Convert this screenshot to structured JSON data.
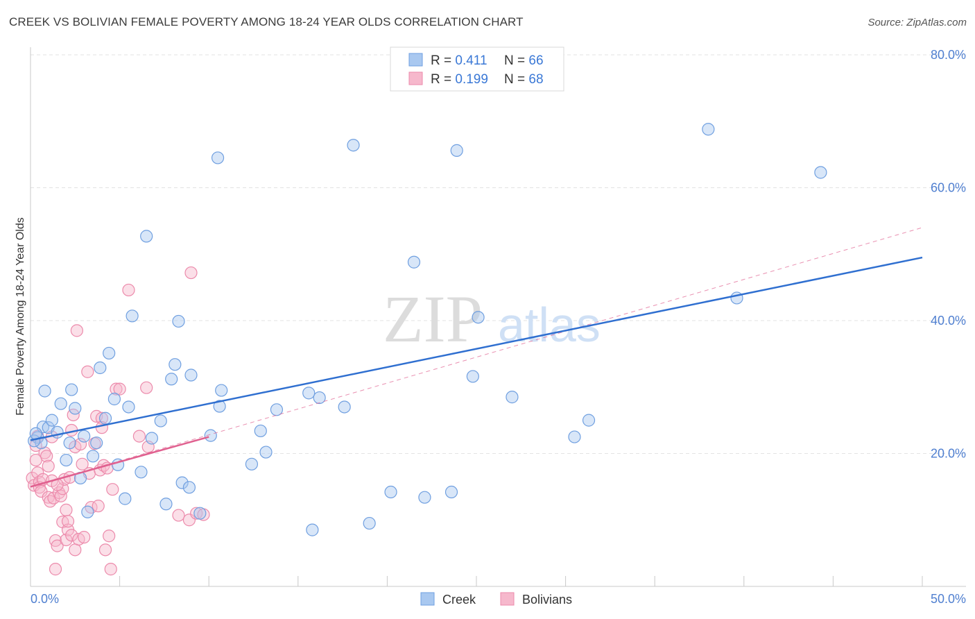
{
  "title": "CREEK VS BOLIVIAN FEMALE POVERTY AMONG 18-24 YEAR OLDS CORRELATION CHART",
  "source": "Source: ZipAtlas.com",
  "watermark": {
    "zip": "ZIP",
    "atlas": "atlas"
  },
  "colors": {
    "creek_fill": "#a9c8f0",
    "creek_stroke": "#6f9fe0",
    "creek_line": "#2f6fd0",
    "bolivian_fill": "#f6b8cc",
    "bolivian_stroke": "#ec8aab",
    "bolivian_line": "#e0608f",
    "tick_text": "#4f7fd0",
    "grid": "#e3e3e3"
  },
  "legend": {
    "items": [
      {
        "r_label": "R = ",
        "r_value": "0.411",
        "n_label": "N = ",
        "n_value": "66"
      },
      {
        "r_label": "R = ",
        "r_value": "0.199",
        "n_label": "N = ",
        "n_value": "68"
      }
    ]
  },
  "bottom_legend": [
    "Creek",
    "Bolivians"
  ],
  "chart_data": {
    "type": "scatter",
    "title": "CREEK VS BOLIVIAN FEMALE POVERTY AMONG 18-24 YEAR OLDS CORRELATION CHART",
    "xlabel": "",
    "ylabel": "Female Poverty Among 18-24 Year Olds",
    "xlim": [
      0,
      50
    ],
    "ylim": [
      0,
      80
    ],
    "x_tick_labels": [
      "0.0%",
      "50.0%"
    ],
    "y_ticks": [
      20,
      40,
      60,
      80
    ],
    "y_tick_labels": [
      "20.0%",
      "40.0%",
      "60.0%",
      "80.0%"
    ],
    "grid": true,
    "legend_position": "top-center",
    "series": [
      {
        "name": "Creek",
        "r": 0.411,
        "n": 66,
        "trend": {
          "x": [
            0,
            50
          ],
          "y": [
            22.0,
            49.5
          ]
        },
        "points": [
          [
            0.4,
            22.4
          ],
          [
            0.6,
            21.6
          ],
          [
            0.7,
            24.0
          ],
          [
            0.8,
            29.4
          ],
          [
            1.0,
            23.9
          ],
          [
            1.2,
            25.0
          ],
          [
            1.5,
            23.2
          ],
          [
            1.7,
            27.5
          ],
          [
            2.0,
            19.0
          ],
          [
            2.2,
            21.6
          ],
          [
            2.3,
            29.6
          ],
          [
            2.5,
            26.8
          ],
          [
            2.8,
            16.3
          ],
          [
            3.0,
            22.6
          ],
          [
            3.2,
            11.2
          ],
          [
            3.5,
            19.6
          ],
          [
            3.7,
            21.6
          ],
          [
            3.9,
            32.9
          ],
          [
            4.2,
            25.3
          ],
          [
            4.4,
            35.1
          ],
          [
            4.7,
            28.2
          ],
          [
            4.9,
            18.3
          ],
          [
            5.3,
            13.2
          ],
          [
            5.5,
            27.0
          ],
          [
            5.7,
            40.7
          ],
          [
            6.2,
            17.2
          ],
          [
            6.5,
            52.7
          ],
          [
            6.8,
            22.3
          ],
          [
            7.3,
            24.9
          ],
          [
            7.6,
            12.4
          ],
          [
            7.9,
            31.2
          ],
          [
            8.1,
            33.4
          ],
          [
            8.3,
            39.9
          ],
          [
            8.5,
            15.6
          ],
          [
            8.9,
            14.9
          ],
          [
            9.0,
            31.8
          ],
          [
            9.5,
            11.0
          ],
          [
            10.1,
            22.7
          ],
          [
            10.5,
            64.5
          ],
          [
            10.6,
            27.1
          ],
          [
            10.7,
            29.5
          ],
          [
            12.4,
            18.4
          ],
          [
            12.9,
            23.4
          ],
          [
            13.2,
            20.2
          ],
          [
            13.8,
            26.6
          ],
          [
            15.6,
            29.1
          ],
          [
            15.8,
            8.5
          ],
          [
            16.2,
            28.4
          ],
          [
            17.6,
            27.0
          ],
          [
            18.1,
            66.4
          ],
          [
            19.0,
            9.5
          ],
          [
            20.2,
            14.2
          ],
          [
            21.5,
            48.8
          ],
          [
            22.1,
            13.4
          ],
          [
            23.6,
            14.2
          ],
          [
            23.9,
            65.6
          ],
          [
            24.8,
            31.6
          ],
          [
            25.1,
            40.5
          ],
          [
            27.0,
            28.5
          ],
          [
            30.5,
            22.5
          ],
          [
            31.3,
            25.0
          ],
          [
            38.0,
            68.8
          ],
          [
            39.6,
            43.4
          ],
          [
            44.3,
            62.3
          ],
          [
            0.2,
            21.9
          ],
          [
            0.3,
            23.0
          ]
        ]
      },
      {
        "name": "Bolivians",
        "r": 0.199,
        "n": 68,
        "trend": {
          "x": [
            0,
            10
          ],
          "y": [
            15.0,
            22.5
          ]
        },
        "trend_extended": {
          "x": [
            0,
            50
          ],
          "y": [
            15.0,
            54.0
          ]
        },
        "points": [
          [
            0.1,
            16.3
          ],
          [
            0.2,
            15.2
          ],
          [
            0.3,
            19.0
          ],
          [
            0.3,
            21.2
          ],
          [
            0.4,
            22.6
          ],
          [
            0.4,
            17.1
          ],
          [
            0.5,
            15.7
          ],
          [
            0.5,
            14.9
          ],
          [
            0.6,
            14.3
          ],
          [
            0.7,
            16.1
          ],
          [
            0.8,
            20.1
          ],
          [
            0.9,
            19.6
          ],
          [
            1.0,
            13.4
          ],
          [
            1.0,
            18.1
          ],
          [
            1.1,
            12.8
          ],
          [
            1.2,
            15.9
          ],
          [
            1.2,
            22.5
          ],
          [
            1.3,
            13.3
          ],
          [
            1.4,
            6.9
          ],
          [
            1.4,
            2.6
          ],
          [
            1.5,
            6.1
          ],
          [
            1.6,
            14.1
          ],
          [
            1.7,
            13.6
          ],
          [
            1.8,
            14.7
          ],
          [
            1.8,
            9.7
          ],
          [
            1.9,
            16.1
          ],
          [
            2.0,
            11.5
          ],
          [
            2.0,
            7.0
          ],
          [
            2.1,
            8.5
          ],
          [
            2.1,
            9.8
          ],
          [
            2.2,
            16.4
          ],
          [
            2.3,
            23.5
          ],
          [
            2.3,
            7.7
          ],
          [
            2.4,
            25.8
          ],
          [
            2.5,
            5.5
          ],
          [
            2.5,
            21.0
          ],
          [
            2.6,
            38.5
          ],
          [
            2.7,
            7.1
          ],
          [
            2.8,
            21.4
          ],
          [
            2.9,
            18.4
          ],
          [
            3.0,
            7.4
          ],
          [
            3.2,
            32.3
          ],
          [
            3.3,
            17.0
          ],
          [
            3.4,
            11.9
          ],
          [
            3.6,
            21.5
          ],
          [
            3.7,
            25.6
          ],
          [
            3.8,
            12.1
          ],
          [
            3.9,
            17.5
          ],
          [
            4.0,
            25.3
          ],
          [
            4.0,
            23.9
          ],
          [
            4.1,
            18.2
          ],
          [
            4.2,
            5.5
          ],
          [
            4.3,
            17.8
          ],
          [
            4.4,
            7.6
          ],
          [
            4.5,
            2.6
          ],
          [
            4.6,
            14.6
          ],
          [
            4.8,
            29.7
          ],
          [
            5.0,
            29.7
          ],
          [
            5.5,
            44.6
          ],
          [
            6.1,
            22.6
          ],
          [
            6.5,
            29.9
          ],
          [
            6.6,
            21.0
          ],
          [
            8.3,
            10.7
          ],
          [
            8.9,
            10.0
          ],
          [
            9.0,
            47.2
          ],
          [
            9.3,
            11.0
          ],
          [
            9.7,
            10.8
          ],
          [
            1.5,
            15.3
          ]
        ]
      }
    ]
  }
}
